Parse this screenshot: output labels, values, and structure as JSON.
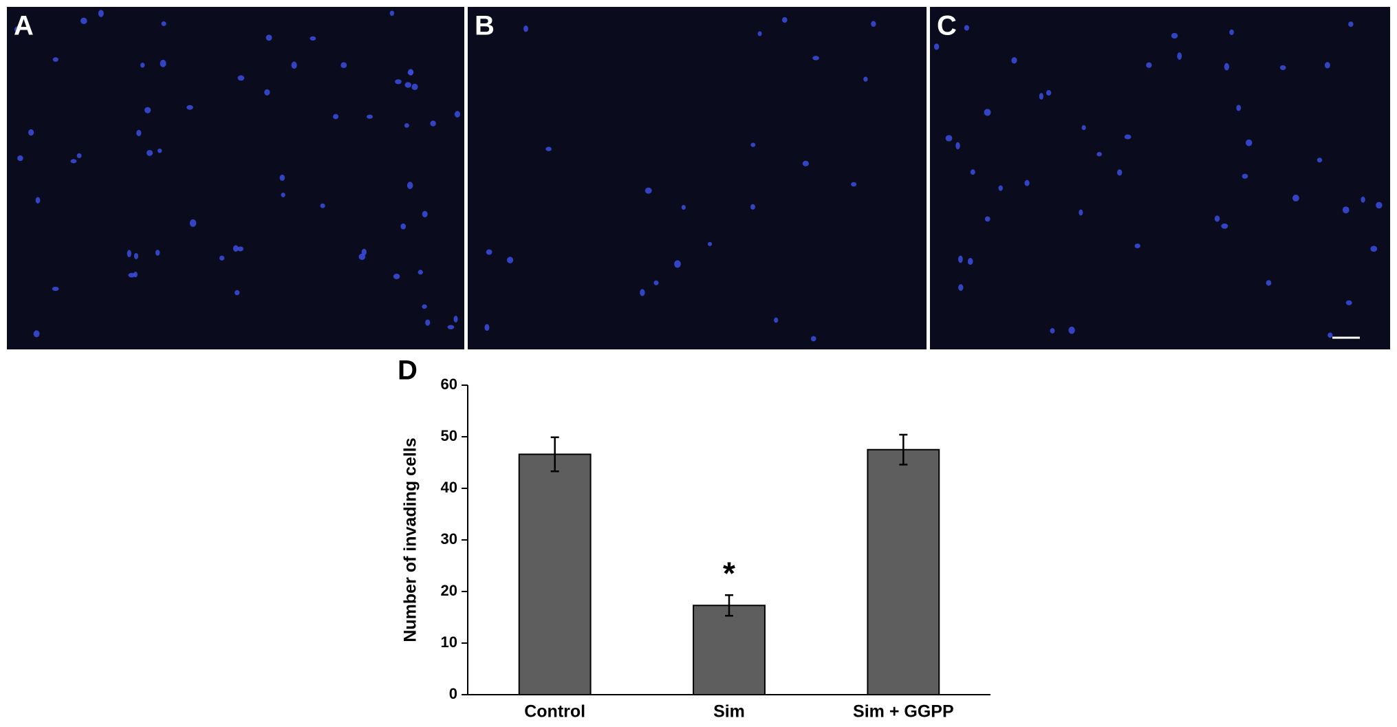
{
  "panels": [
    "A",
    "B",
    "C"
  ],
  "chart_data": {
    "type": "bar",
    "label": "D",
    "y_label": "Number of invading cells",
    "categories": [
      "Control",
      "Sim",
      "Sim + GGPP"
    ],
    "values": [
      46.6,
      17.3,
      47.5
    ],
    "errors": [
      3.3,
      2.0,
      2.9
    ],
    "annotation": "*",
    "color": "#5e5e5e",
    "ylim": [
      0,
      60
    ],
    "yticks": [
      0,
      10,
      20,
      30,
      40,
      50,
      60
    ],
    "grid": false
  }
}
